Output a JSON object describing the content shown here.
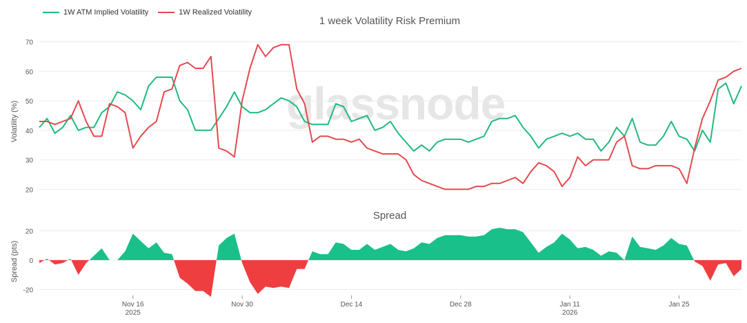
{
  "legend": {
    "implied_label": "1W ATM Implied Volatility",
    "realized_label": "1W Realized Volatility"
  },
  "watermark": "glassnode",
  "colors": {
    "implied": "#1fb97e",
    "realized": "#e5484d",
    "spread_pos": "#19c08a",
    "spread_neg": "#ef3e40",
    "grid": "#ececec",
    "axis_text": "#555555"
  },
  "chart_data": [
    {
      "type": "line",
      "title": "1 week Volatility Risk Premium",
      "ylabel": "Volatility (%)",
      "ylim": [
        14,
        72
      ],
      "yticks": [
        20,
        30,
        40,
        50,
        60,
        70
      ],
      "grid": true,
      "legend_position": "top-left",
      "x": [
        "2025-11-04",
        "2025-11-05",
        "2025-11-06",
        "2025-11-07",
        "2025-11-08",
        "2025-11-09",
        "2025-11-10",
        "2025-11-11",
        "2025-11-12",
        "2025-11-13",
        "2025-11-14",
        "2025-11-15",
        "2025-11-16",
        "2025-11-17",
        "2025-11-18",
        "2025-11-19",
        "2025-11-20",
        "2025-11-21",
        "2025-11-22",
        "2025-11-23",
        "2025-11-24",
        "2025-11-25",
        "2025-11-26",
        "2025-11-27",
        "2025-11-28",
        "2025-11-29",
        "2025-11-30",
        "2025-12-01",
        "2025-12-02",
        "2025-12-03",
        "2025-12-04",
        "2025-12-05",
        "2025-12-06",
        "2025-12-07",
        "2025-12-08",
        "2025-12-09",
        "2025-12-10",
        "2025-12-11",
        "2025-12-12",
        "2025-12-13",
        "2025-12-14",
        "2025-12-15",
        "2025-12-16",
        "2025-12-17",
        "2025-12-18",
        "2025-12-19",
        "2025-12-20",
        "2025-12-21",
        "2025-12-22",
        "2025-12-23",
        "2025-12-24",
        "2025-12-25",
        "2025-12-26",
        "2025-12-27",
        "2025-12-28",
        "2025-12-29",
        "2025-12-30",
        "2025-12-31",
        "2026-01-01",
        "2026-01-02",
        "2026-01-03",
        "2026-01-04",
        "2026-01-05",
        "2026-01-06",
        "2026-01-07",
        "2026-01-08",
        "2026-01-09",
        "2026-01-10",
        "2026-01-11",
        "2026-01-12",
        "2026-01-13",
        "2026-01-14",
        "2026-01-15",
        "2026-01-16",
        "2026-01-17",
        "2026-01-18",
        "2026-01-19",
        "2026-01-20",
        "2026-01-21",
        "2026-01-22",
        "2026-01-23",
        "2026-01-24",
        "2026-01-25",
        "2026-01-26",
        "2026-01-27",
        "2026-01-28",
        "2026-01-29",
        "2026-01-30",
        "2026-01-31",
        "2026-02-01",
        "2026-02-02"
      ],
      "series": [
        {
          "name": "1W ATM Implied Volatility",
          "values": [
            41,
            44,
            39,
            41,
            45,
            40,
            41,
            41,
            46,
            48,
            53,
            52,
            50,
            47,
            55,
            58,
            58,
            58,
            50,
            47,
            40,
            40,
            40,
            44,
            48,
            53,
            48,
            46,
            46,
            47,
            49,
            51,
            50,
            48,
            43,
            42,
            42,
            42,
            49,
            48,
            43,
            44,
            45,
            40,
            41,
            43,
            39,
            36,
            33,
            35,
            33,
            36,
            37,
            37,
            37,
            36,
            37,
            38,
            43,
            44,
            44,
            45,
            41,
            38,
            34,
            37,
            38,
            39,
            38,
            39,
            37,
            37,
            33,
            36,
            41,
            38,
            44,
            36,
            35,
            35,
            38,
            43,
            38,
            37,
            33,
            40,
            36,
            54,
            56,
            49,
            55
          ]
        },
        {
          "name": "1W Realized Volatility",
          "values": [
            43,
            43,
            42,
            43,
            44,
            50,
            43,
            38,
            38,
            49,
            48,
            46,
            34,
            38,
            41,
            43,
            53,
            54,
            62,
            63,
            61,
            61,
            65,
            34,
            33,
            31,
            50,
            61,
            69,
            65,
            68,
            69,
            69,
            54,
            49,
            36,
            38,
            38,
            37,
            37,
            36,
            37,
            34,
            33,
            32,
            32,
            32,
            30,
            25,
            23,
            22,
            21,
            20,
            20,
            20,
            20,
            21,
            21,
            22,
            22,
            23,
            24,
            22,
            26,
            29,
            28,
            26,
            21,
            24,
            31,
            28,
            30,
            30,
            30,
            36,
            38,
            28,
            27,
            27,
            28,
            28,
            28,
            27,
            22,
            34,
            44,
            50,
            57,
            58,
            60,
            61
          ]
        }
      ]
    },
    {
      "type": "area",
      "title": "Spread",
      "ylabel": "Spread (pts)",
      "ylim": [
        -24,
        22
      ],
      "yticks": [
        -20,
        0,
        20
      ],
      "grid": true,
      "xtick_labels": [
        {
          "date": "2025-11-16",
          "label": "Nov 16",
          "year": "2025"
        },
        {
          "date": "2025-11-30",
          "label": "Nov 30",
          "year": ""
        },
        {
          "date": "2025-12-14",
          "label": "Dec 14",
          "year": ""
        },
        {
          "date": "2025-12-28",
          "label": "Dec 28",
          "year": ""
        },
        {
          "date": "2026-01-11",
          "label": "Jan 11",
          "year": "2026"
        },
        {
          "date": "2026-01-25",
          "label": "Jan 25",
          "year": ""
        }
      ],
      "series": [
        {
          "name": "Spread",
          "values": [
            -2,
            1,
            -3,
            -2,
            1,
            -10,
            -2,
            3,
            8,
            0,
            0,
            6,
            18,
            13,
            8,
            12,
            5,
            4,
            -12,
            -16,
            -21,
            -21,
            -25,
            10,
            15,
            18,
            -2,
            -15,
            -23,
            -18,
            -19,
            -18,
            -19,
            -6,
            -6,
            6,
            4,
            4,
            12,
            11,
            7,
            7,
            11,
            7,
            9,
            11,
            7,
            6,
            8,
            12,
            11,
            15,
            17,
            17,
            17,
            16,
            16,
            17,
            21,
            22,
            21,
            21,
            19,
            12,
            5,
            9,
            12,
            18,
            14,
            8,
            9,
            7,
            3,
            6,
            5,
            0,
            16,
            9,
            8,
            7,
            10,
            15,
            11,
            10,
            -1,
            -4,
            -14,
            -3,
            -2,
            -11,
            -6
          ]
        }
      ]
    }
  ]
}
